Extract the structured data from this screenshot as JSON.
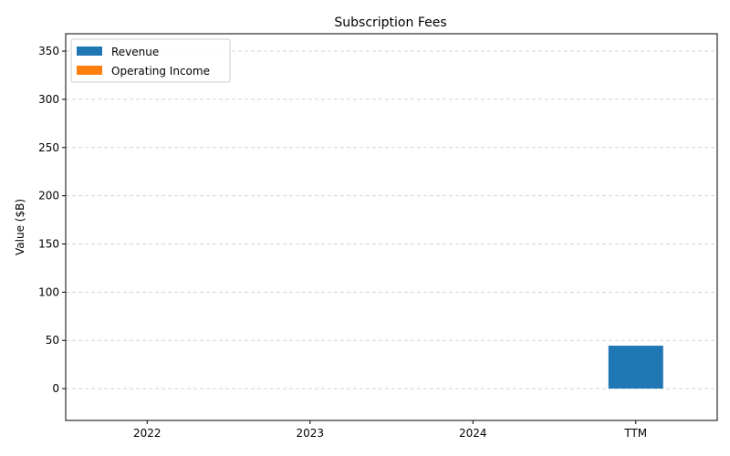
{
  "chart_data": {
    "type": "bar",
    "title": "Subscription Fees",
    "xlabel": "",
    "ylabel": "Value ($B)",
    "categories": [
      "2022",
      "2023",
      "2024",
      "TTM"
    ],
    "series": [
      {
        "name": "Revenue",
        "color": "#1f77b4",
        "values": [
          0,
          0,
          0,
          44.5
        ]
      },
      {
        "name": "Operating Income",
        "color": "#ff7f0e",
        "values": [
          0,
          0,
          0,
          0
        ]
      }
    ],
    "ylim": [
      -33,
      368
    ],
    "yticks": [
      0,
      50,
      100,
      150,
      200,
      250,
      300,
      350
    ],
    "grid": "y-dashed",
    "legend": "top-left"
  }
}
